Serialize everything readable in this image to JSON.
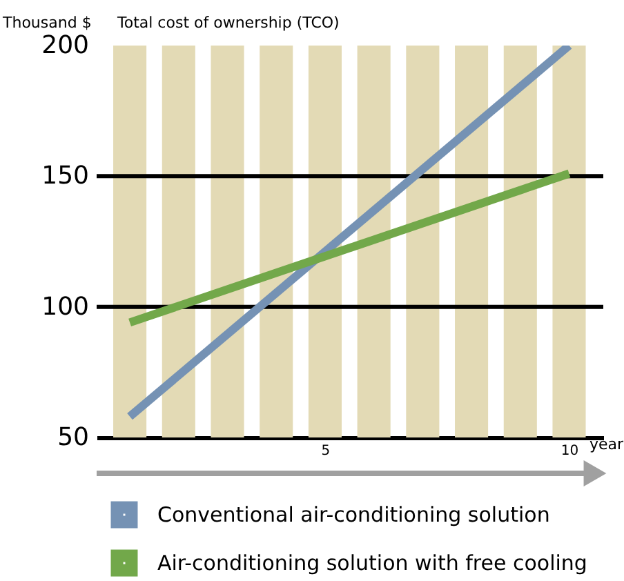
{
  "chart_data": {
    "type": "line",
    "title": "Total cost of ownership (TCO)",
    "ylabel": "Thousand $",
    "xlabel": "year",
    "xlim": [
      0.32,
      10.7
    ],
    "xticks": [
      5,
      10
    ],
    "ylim": [
      50,
      200
    ],
    "x": [
      1,
      10
    ],
    "yticks": [
      50,
      100,
      150,
      200
    ],
    "grid": false,
    "legend": "bottom",
    "series": [
      {
        "name": "Conventional air-conditioning solution",
        "color": "#7592b4",
        "values": [
          58,
          200
        ]
      },
      {
        "name": "Air-conditioning solution with free cooling",
        "color": "#72a84a",
        "values": [
          94,
          151
        ]
      }
    ],
    "ref_lines": [
      {
        "axis": "y",
        "value": 100,
        "color": "#000000"
      },
      {
        "axis": "y",
        "value": 150,
        "color": "#000000"
      }
    ],
    "bands": [
      {
        "axis": "x",
        "from": 0.66,
        "to": 1.34,
        "color": "#e3dab5"
      },
      {
        "axis": "x",
        "from": 1.66,
        "to": 2.34,
        "color": "#e3dab5"
      },
      {
        "axis": "x",
        "from": 2.66,
        "to": 3.34,
        "color": "#e3dab5"
      },
      {
        "axis": "x",
        "from": 3.66,
        "to": 4.34,
        "color": "#e3dab5"
      },
      {
        "axis": "x",
        "from": 4.66,
        "to": 5.34,
        "color": "#e3dab5"
      },
      {
        "axis": "x",
        "from": 5.66,
        "to": 6.34,
        "color": "#e3dab5"
      },
      {
        "axis": "x",
        "from": 6.66,
        "to": 7.34,
        "color": "#e3dab5"
      },
      {
        "axis": "x",
        "from": 7.66,
        "to": 8.34,
        "color": "#e3dab5"
      },
      {
        "axis": "x",
        "from": 8.66,
        "to": 9.34,
        "color": "#e3dab5"
      },
      {
        "axis": "x",
        "from": 9.66,
        "to": 10.34,
        "color": "#e3dab5"
      }
    ]
  }
}
